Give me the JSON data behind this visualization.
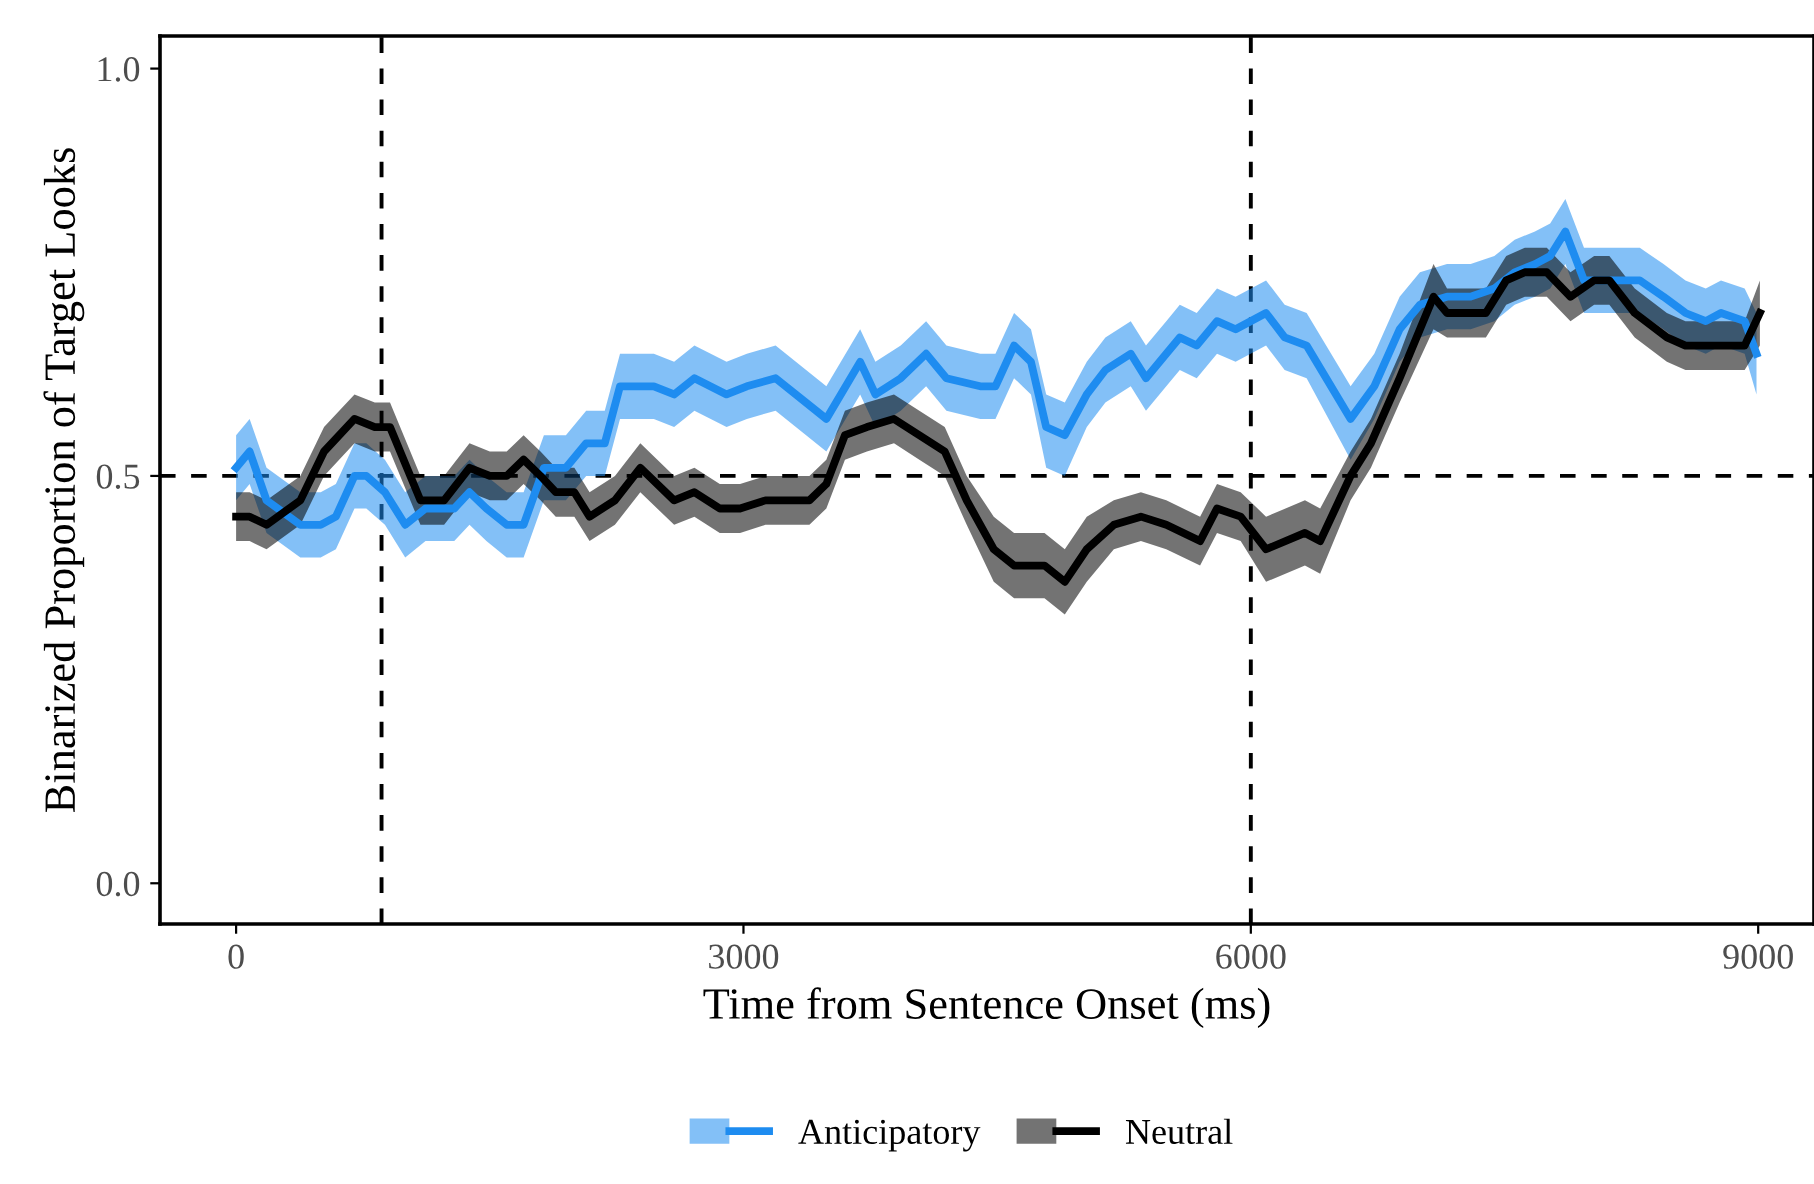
{
  "chart_data": {
    "type": "line",
    "xlabel": "Time from Sentence Onset (ms)",
    "ylabel": "Binarized Proportion of Target Looks",
    "xlim": [
      -450,
      9330
    ],
    "ylim": [
      -0.05,
      1.04
    ],
    "xticks": [
      0,
      3000,
      6000,
      9000
    ],
    "yticks": [
      {
        "value": 0,
        "label": "0.0"
      },
      {
        "value": 0.5,
        "label": "0.5"
      },
      {
        "value": 1,
        "label": "1.0"
      }
    ],
    "grid": false,
    "legend": "bottom",
    "marker": "none",
    "line_style": "solid",
    "ref_lines": [
      {
        "axis": "x",
        "value": 860,
        "line_style": "dashed",
        "color": "#000000"
      },
      {
        "axis": "x",
        "value": 6000,
        "line_style": "dashed",
        "color": "#000000"
      },
      {
        "axis": "y",
        "value": 0.5,
        "line_style": "dashed",
        "color": "#000000"
      }
    ],
    "series": [
      {
        "name": "Anticipatory",
        "color": "#1e8cf0",
        "x": [
          0,
          80,
          180,
          380,
          500,
          590,
          700,
          770,
          880,
          1000,
          1120,
          1290,
          1380,
          1480,
          1600,
          1700,
          1820,
          1950,
          2070,
          2180,
          2270,
          2470,
          2590,
          2710,
          2900,
          3020,
          3190,
          3490,
          3690,
          3780,
          3930,
          4080,
          4200,
          4400,
          4490,
          4600,
          4700,
          4790,
          4900,
          5030,
          5140,
          5290,
          5380,
          5500,
          5580,
          5680,
          5800,
          5910,
          6090,
          6200,
          6330,
          6590,
          6730,
          6880,
          7000,
          7160,
          7300,
          7440,
          7560,
          7680,
          7770,
          7860,
          7970,
          8090,
          8210,
          8300,
          8440,
          8570,
          8690,
          8780,
          8920,
          8990
        ],
        "values": [
          0.51,
          0.53,
          0.47,
          0.44,
          0.44,
          0.45,
          0.5,
          0.5,
          0.48,
          0.44,
          0.46,
          0.46,
          0.48,
          0.46,
          0.44,
          0.44,
          0.51,
          0.51,
          0.54,
          0.54,
          0.61,
          0.61,
          0.6,
          0.62,
          0.6,
          0.61,
          0.62,
          0.57,
          0.64,
          0.6,
          0.62,
          0.65,
          0.62,
          0.61,
          0.61,
          0.66,
          0.64,
          0.56,
          0.55,
          0.6,
          0.63,
          0.65,
          0.62,
          0.65,
          0.67,
          0.66,
          0.69,
          0.68,
          0.7,
          0.67,
          0.66,
          0.57,
          0.61,
          0.68,
          0.71,
          0.72,
          0.72,
          0.73,
          0.75,
          0.76,
          0.77,
          0.8,
          0.74,
          0.74,
          0.74,
          0.74,
          0.72,
          0.7,
          0.69,
          0.7,
          0.69,
          0.65
        ],
        "lower": [
          0.47,
          0.49,
          0.43,
          0.4,
          0.4,
          0.41,
          0.46,
          0.46,
          0.44,
          0.4,
          0.42,
          0.42,
          0.44,
          0.42,
          0.4,
          0.4,
          0.47,
          0.47,
          0.5,
          0.5,
          0.57,
          0.57,
          0.56,
          0.58,
          0.56,
          0.57,
          0.58,
          0.53,
          0.6,
          0.56,
          0.58,
          0.61,
          0.58,
          0.57,
          0.57,
          0.62,
          0.6,
          0.51,
          0.5,
          0.56,
          0.59,
          0.61,
          0.58,
          0.61,
          0.63,
          0.62,
          0.65,
          0.64,
          0.66,
          0.63,
          0.62,
          0.52,
          0.57,
          0.64,
          0.67,
          0.68,
          0.68,
          0.69,
          0.71,
          0.72,
          0.73,
          0.76,
          0.7,
          0.7,
          0.7,
          0.7,
          0.68,
          0.66,
          0.65,
          0.66,
          0.65,
          0.6
        ],
        "upper": [
          0.55,
          0.57,
          0.51,
          0.48,
          0.48,
          0.49,
          0.54,
          0.54,
          0.52,
          0.48,
          0.5,
          0.5,
          0.52,
          0.5,
          0.48,
          0.48,
          0.55,
          0.55,
          0.58,
          0.58,
          0.65,
          0.65,
          0.64,
          0.66,
          0.64,
          0.65,
          0.66,
          0.61,
          0.68,
          0.64,
          0.66,
          0.69,
          0.66,
          0.65,
          0.65,
          0.7,
          0.68,
          0.6,
          0.59,
          0.64,
          0.67,
          0.69,
          0.66,
          0.69,
          0.71,
          0.7,
          0.73,
          0.72,
          0.74,
          0.71,
          0.7,
          0.61,
          0.65,
          0.72,
          0.75,
          0.76,
          0.76,
          0.77,
          0.79,
          0.8,
          0.81,
          0.84,
          0.78,
          0.78,
          0.78,
          0.78,
          0.76,
          0.74,
          0.73,
          0.74,
          0.73,
          0.7
        ]
      },
      {
        "name": "Neutral",
        "color": "#000000",
        "x": [
          0,
          80,
          180,
          380,
          520,
          700,
          820,
          910,
          1090,
          1230,
          1380,
          1500,
          1600,
          1700,
          1800,
          1890,
          2000,
          2090,
          2240,
          2390,
          2590,
          2710,
          2860,
          2980,
          3130,
          3390,
          3490,
          3600,
          3730,
          3890,
          4040,
          4190,
          4320,
          4480,
          4600,
          4780,
          4900,
          5030,
          5190,
          5350,
          5500,
          5700,
          5800,
          5940,
          6090,
          6320,
          6410,
          6590,
          6710,
          6880,
          7080,
          7160,
          7390,
          7510,
          7620,
          7750,
          7890,
          8030,
          8120,
          8270,
          8460,
          8570,
          8690,
          8780,
          8920,
          9010
        ],
        "values": [
          0.45,
          0.45,
          0.44,
          0.47,
          0.53,
          0.57,
          0.56,
          0.56,
          0.47,
          0.47,
          0.51,
          0.5,
          0.5,
          0.52,
          0.5,
          0.48,
          0.48,
          0.45,
          0.47,
          0.51,
          0.47,
          0.48,
          0.46,
          0.46,
          0.47,
          0.47,
          0.49,
          0.55,
          0.56,
          0.57,
          0.55,
          0.53,
          0.47,
          0.41,
          0.39,
          0.39,
          0.37,
          0.41,
          0.44,
          0.45,
          0.44,
          0.42,
          0.46,
          0.45,
          0.41,
          0.43,
          0.42,
          0.5,
          0.54,
          0.62,
          0.72,
          0.7,
          0.7,
          0.74,
          0.75,
          0.75,
          0.72,
          0.74,
          0.74,
          0.7,
          0.67,
          0.66,
          0.66,
          0.66,
          0.66,
          0.7
        ],
        "lower": [
          0.42,
          0.42,
          0.41,
          0.44,
          0.5,
          0.54,
          0.53,
          0.53,
          0.44,
          0.44,
          0.48,
          0.47,
          0.47,
          0.49,
          0.47,
          0.45,
          0.45,
          0.42,
          0.44,
          0.48,
          0.44,
          0.45,
          0.43,
          0.43,
          0.44,
          0.44,
          0.46,
          0.52,
          0.53,
          0.54,
          0.52,
          0.5,
          0.44,
          0.37,
          0.35,
          0.35,
          0.33,
          0.37,
          0.41,
          0.42,
          0.41,
          0.39,
          0.43,
          0.42,
          0.37,
          0.39,
          0.38,
          0.47,
          0.51,
          0.59,
          0.68,
          0.67,
          0.67,
          0.71,
          0.72,
          0.72,
          0.69,
          0.71,
          0.71,
          0.67,
          0.64,
          0.63,
          0.63,
          0.63,
          0.63,
          0.66
        ],
        "upper": [
          0.48,
          0.48,
          0.47,
          0.5,
          0.56,
          0.6,
          0.59,
          0.59,
          0.5,
          0.5,
          0.54,
          0.53,
          0.53,
          0.55,
          0.53,
          0.51,
          0.51,
          0.48,
          0.5,
          0.54,
          0.5,
          0.51,
          0.49,
          0.49,
          0.5,
          0.5,
          0.52,
          0.58,
          0.59,
          0.6,
          0.58,
          0.56,
          0.5,
          0.45,
          0.43,
          0.43,
          0.41,
          0.45,
          0.47,
          0.48,
          0.47,
          0.45,
          0.49,
          0.48,
          0.45,
          0.47,
          0.46,
          0.53,
          0.57,
          0.65,
          0.76,
          0.73,
          0.73,
          0.77,
          0.78,
          0.78,
          0.75,
          0.77,
          0.77,
          0.73,
          0.7,
          0.69,
          0.69,
          0.69,
          0.69,
          0.74
        ]
      }
    ]
  }
}
